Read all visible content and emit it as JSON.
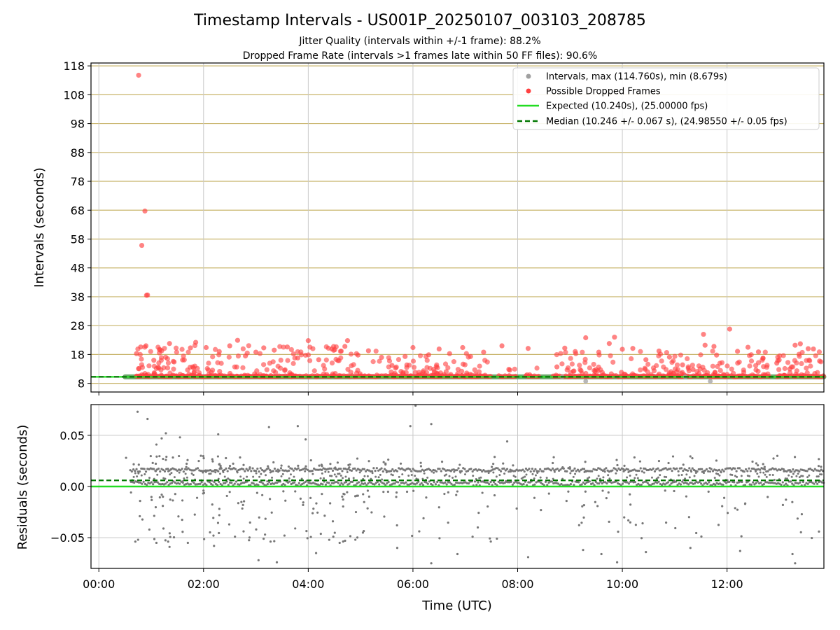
{
  "chart_data": [
    {
      "type": "scatter",
      "title": "Timestamp Intervals - US001P_20250107_003103_208785",
      "subtitles": [
        "Jitter Quality (intervals within +/-1 frame): 88.2%",
        "Dropped Frame Rate (intervals >1 frames late within 50 FF files): 90.6%"
      ],
      "xlabel": "",
      "ylabel": "Intervals (seconds)",
      "xlim_hours": [
        -0.15,
        13.85
      ],
      "ylim": [
        5,
        119
      ],
      "xticks": [
        "00:00",
        "02:00",
        "04:00",
        "06:00",
        "08:00",
        "10:00",
        "12:00"
      ],
      "yticks": [
        8,
        18,
        28,
        38,
        48,
        58,
        68,
        78,
        88,
        98,
        108,
        118
      ],
      "ygrid_color": "#c8b46a",
      "grid": true,
      "legend_position": "top-right",
      "legend": [
        {
          "label": "Intervals, max (114.760s), min (8.679s)",
          "kind": "marker",
          "color": "#a0a0a0"
        },
        {
          "label": "Possible Dropped Frames",
          "kind": "marker",
          "color": "#ff4040"
        },
        {
          "label": "Expected (10.240s), (25.00000 fps)",
          "kind": "line",
          "color": "#22dd22"
        },
        {
          "label": "Median (10.246 +/- 0.067 s), (24.98550 +/- 0.05 fps)",
          "kind": "dashed",
          "color": "#007700"
        }
      ],
      "baseline": {
        "x_range_hours": [
          0.5,
          13.85
        ],
        "value": 10.24,
        "color": "#5a9e5a"
      },
      "expected_line": {
        "value": 10.24,
        "color": "#22dd22"
      },
      "median_line": {
        "value": 10.246,
        "color": "#007700"
      },
      "dropped_series": {
        "name": "Possible Dropped Frames",
        "color": "#ff4040",
        "points": [
          [
            0.76,
            114.76
          ],
          [
            0.88,
            67.7
          ],
          [
            0.82,
            55.8
          ],
          [
            0.91,
            38.5
          ],
          [
            0.93,
            38.6
          ],
          [
            0.72,
            18.3
          ],
          [
            0.8,
            20.6
          ],
          [
            0.9,
            21.0
          ],
          [
            1.05,
            16.0
          ],
          [
            1.2,
            19.3
          ],
          [
            1.35,
            21.8
          ],
          [
            1.6,
            16.1
          ],
          [
            1.75,
            20.3
          ],
          [
            1.85,
            22.2
          ],
          [
            2.05,
            20.4
          ],
          [
            2.3,
            19.0
          ],
          [
            2.5,
            21.0
          ],
          [
            2.65,
            22.9
          ],
          [
            2.8,
            17.5
          ],
          [
            3.0,
            18.8
          ],
          [
            3.15,
            20.3
          ],
          [
            3.35,
            19.5
          ],
          [
            3.6,
            20.6
          ],
          [
            3.8,
            16.8
          ],
          [
            4.0,
            22.8
          ],
          [
            4.2,
            16.2
          ],
          [
            4.45,
            19.9
          ],
          [
            4.7,
            20.8
          ],
          [
            4.75,
            22.8
          ],
          [
            4.95,
            17.8
          ],
          [
            5.15,
            19.3
          ],
          [
            5.4,
            17.0
          ],
          [
            5.6,
            14.2
          ],
          [
            5.85,
            17.3
          ],
          [
            6.0,
            20.4
          ],
          [
            6.3,
            17.9
          ],
          [
            6.5,
            19.9
          ],
          [
            6.7,
            18.3
          ],
          [
            6.95,
            20.4
          ],
          [
            7.1,
            17.3
          ],
          [
            7.35,
            18.8
          ],
          [
            7.7,
            21.0
          ],
          [
            7.85,
            12.6
          ],
          [
            8.2,
            20.1
          ],
          [
            8.75,
            13.7
          ],
          [
            8.9,
            20.2
          ],
          [
            9.1,
            19.0
          ],
          [
            9.3,
            23.8
          ],
          [
            9.55,
            18.8
          ],
          [
            9.75,
            21.8
          ],
          [
            9.85,
            24.0
          ],
          [
            10.0,
            19.8
          ],
          [
            10.2,
            20.1
          ],
          [
            10.45,
            16.2
          ],
          [
            10.7,
            19.2
          ],
          [
            10.9,
            17.1
          ],
          [
            11.15,
            14.4
          ],
          [
            11.35,
            12.8
          ],
          [
            11.55,
            25.0
          ],
          [
            11.58,
            21.2
          ],
          [
            11.75,
            20.8
          ],
          [
            11.8,
            17.8
          ],
          [
            12.05,
            26.8
          ],
          [
            12.2,
            19.1
          ],
          [
            12.4,
            20.5
          ],
          [
            12.6,
            18.9
          ],
          [
            12.95,
            15.0
          ],
          [
            13.2,
            13.0
          ],
          [
            13.3,
            21.2
          ],
          [
            13.4,
            21.7
          ],
          [
            13.55,
            20.0
          ],
          [
            13.65,
            19.9
          ]
        ]
      },
      "interval_series": {
        "name": "Intervals",
        "color": "#a0a0a0",
        "points": [
          [
            9.3,
            8.7
          ],
          [
            11.68,
            8.679
          ],
          [
            8.85,
            10.24
          ],
          [
            11.2,
            10.24
          ]
        ]
      }
    },
    {
      "type": "scatter",
      "xlabel": "Time (UTC)",
      "ylabel": "Residuals (seconds)",
      "xlim_hours": [
        -0.15,
        13.85
      ],
      "ylim": [
        -0.08,
        0.08
      ],
      "xticks": [
        "00:00",
        "02:00",
        "04:00",
        "06:00",
        "08:00",
        "10:00",
        "12:00"
      ],
      "yticks": [
        "−0.05",
        "0.00",
        "0.05"
      ],
      "ytick_values": [
        -0.05,
        0.0,
        0.05
      ],
      "grid": true,
      "expected_line": {
        "value": 0.0,
        "color": "#22dd22"
      },
      "median_line": {
        "value": 0.006,
        "color": "#007700"
      },
      "residual_series": {
        "name": "Residuals",
        "color": "#777777",
        "points": [
          [
            0.52,
            0.028
          ],
          [
            0.74,
            0.073
          ],
          [
            0.93,
            0.066
          ],
          [
            1.1,
            0.041
          ],
          [
            1.2,
            0.047
          ],
          [
            1.28,
            0.052
          ],
          [
            1.55,
            0.048
          ],
          [
            1.95,
            0.03
          ],
          [
            2.28,
            0.051
          ],
          [
            3.25,
            0.058
          ],
          [
            3.8,
            0.059
          ],
          [
            3.95,
            0.046
          ],
          [
            5.95,
            0.059
          ],
          [
            6.05,
            0.079
          ],
          [
            6.35,
            0.061
          ],
          [
            7.8,
            0.044
          ],
          [
            0.75,
            -0.052
          ],
          [
            1.1,
            -0.055
          ],
          [
            1.35,
            -0.059
          ],
          [
            1.7,
            -0.055
          ],
          [
            2.2,
            -0.058
          ],
          [
            2.6,
            -0.049
          ],
          [
            3.05,
            -0.072
          ],
          [
            3.4,
            -0.074
          ],
          [
            4.15,
            -0.065
          ],
          [
            4.6,
            -0.055
          ],
          [
            4.9,
            -0.052
          ],
          [
            5.7,
            -0.06
          ],
          [
            6.35,
            -0.075
          ],
          [
            6.85,
            -0.066
          ],
          [
            8.2,
            -0.069
          ],
          [
            9.25,
            -0.062
          ],
          [
            9.6,
            -0.066
          ],
          [
            9.9,
            -0.074
          ],
          [
            10.45,
            -0.064
          ],
          [
            11.3,
            -0.06
          ],
          [
            12.25,
            -0.063
          ],
          [
            13.25,
            -0.066
          ],
          [
            13.3,
            -0.075
          ]
        ]
      }
    }
  ]
}
